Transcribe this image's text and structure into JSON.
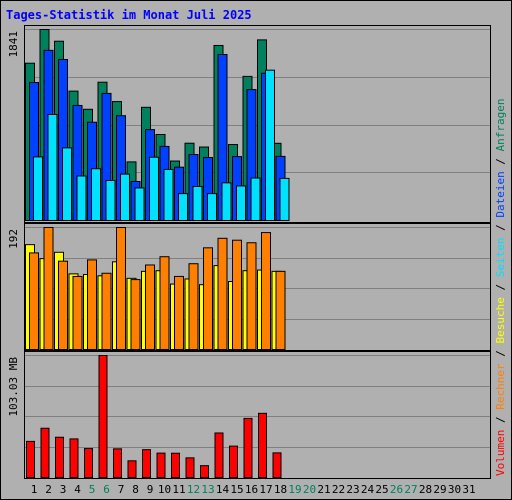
{
  "chart_data": {
    "type": "bar",
    "title": "Tages-Statistik im Monat Juli 2025",
    "days": [
      "1",
      "2",
      "3",
      "4",
      "5",
      "6",
      "7",
      "8",
      "9",
      "10",
      "11",
      "12",
      "13",
      "14",
      "15",
      "16",
      "17",
      "18",
      "19",
      "20",
      "21",
      "22",
      "23",
      "24",
      "25",
      "26",
      "27",
      "28",
      "29",
      "30",
      "31"
    ],
    "weekend_days": [
      "5",
      "6",
      "12",
      "13",
      "19",
      "20",
      "26",
      "27"
    ],
    "panels": [
      {
        "name": "requests",
        "ytick_label": "1841",
        "ymax": 1841,
        "series": [
          {
            "name": "Anfragen",
            "color": "#00805c",
            "values": [
              1516,
              1841,
              1728,
              1247,
              1072,
              1333,
              1146,
              565,
              1091,
              829,
              573,
              745,
              708,
              1687,
              732,
              1389,
              1741,
              744
            ]
          },
          {
            "name": "Dateien",
            "color": "#0040ff",
            "values": [
              1330,
              1640,
              1552,
              1109,
              947,
              1225,
              1010,
              376,
              876,
              714,
              514,
              636,
              607,
              1600,
              616,
              1262,
              1419,
              618
            ]
          },
          {
            "name": "Seiten",
            "color": "#00e0ff",
            "values": [
              613,
              1022,
              700,
              429,
              499,
              386,
              447,
              314,
              610,
              492,
              259,
              328,
              259,
              363,
              333,
              409,
              1449,
              406
            ]
          }
        ]
      },
      {
        "name": "visits",
        "ytick_label": "192",
        "ymax": 192,
        "series": [
          {
            "name": "Besuche",
            "color": "#ffff00",
            "values": [
              165,
              143,
              153,
              119,
              118,
              116,
              138,
              112,
              123,
              124,
              103,
              111,
              102,
              132,
              107,
              124,
              125,
              123
            ]
          },
          {
            "name": "Rechner",
            "color": "#ff8000",
            "values": [
              152,
              192,
              139,
              115,
              141,
              120,
              192,
              110,
              133,
              146,
              115,
              135,
              160,
              175,
              172,
              168,
              184,
              123
            ]
          }
        ]
      },
      {
        "name": "volume",
        "ytick_label": "103.03 MB",
        "ymax": 103.03,
        "series": [
          {
            "name": "Volumen",
            "color": "#ff0000",
            "values": [
              30.5,
              41.6,
              34.0,
              32.6,
              24.5,
              103.03,
              24.2,
              14.1,
              23.5,
              20.6,
              20.5,
              16.6,
              10.0,
              37.6,
              26.5,
              49.9,
              54.2,
              20.8
            ]
          }
        ]
      }
    ],
    "legend_right": [
      {
        "label": "Volumen",
        "color": "#ff0000"
      },
      {
        "label": "Rechner",
        "color": "#ff8000"
      },
      {
        "label": "Besuche",
        "color": "#ffff00"
      },
      {
        "label": "Seiten",
        "color": "#00e0ff"
      },
      {
        "label": "Dateien",
        "color": "#0040ff"
      },
      {
        "label": "Anfragen",
        "color": "#00805c"
      }
    ],
    "legend_separator": " / ",
    "colors": {
      "background": "#b0b0b0",
      "grid": "#808080",
      "title": "#0000ff",
      "weekend": "#00805c",
      "weekday": "#000000"
    }
  }
}
